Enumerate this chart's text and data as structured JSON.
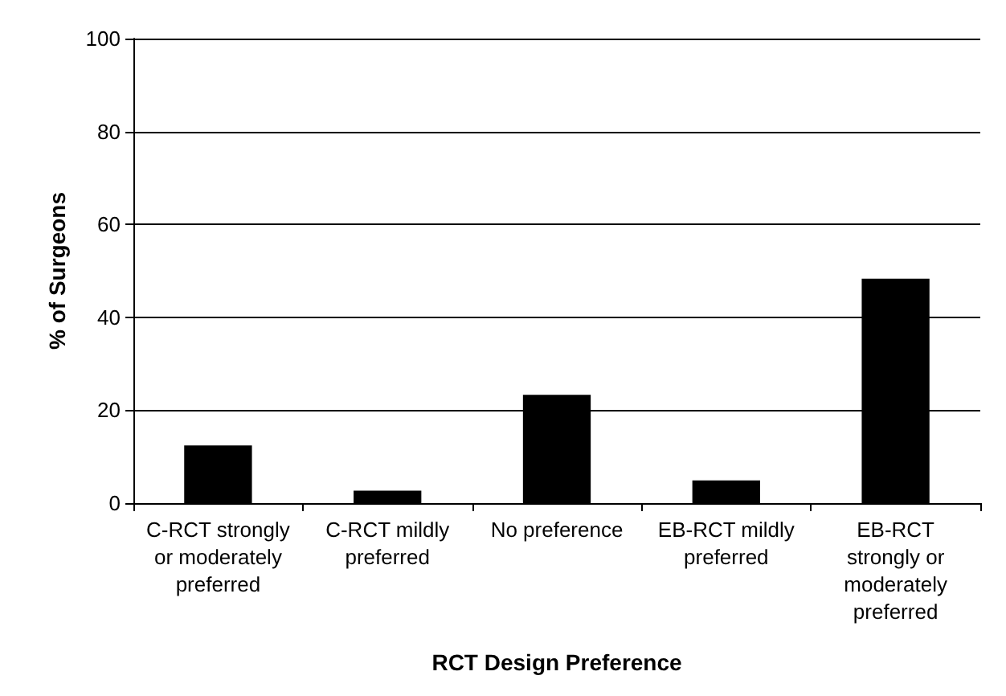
{
  "chart_data": {
    "type": "bar",
    "xlabel": "RCT Design Preference",
    "ylabel": "% of Surgeons",
    "categories": [
      "C-RCT strongly or moderately preferred",
      "C-RCT mildly preferred",
      "No preference",
      "EB-RCT mildly preferred",
      "EB-RCT strongly or moderately preferred"
    ],
    "values": [
      12.4,
      2.7,
      23.3,
      4.9,
      48.3
    ],
    "color": "#000000",
    "ylim": [
      0,
      100
    ],
    "yticks": [
      0,
      20,
      40,
      60,
      80,
      100
    ],
    "grid": "y"
  }
}
